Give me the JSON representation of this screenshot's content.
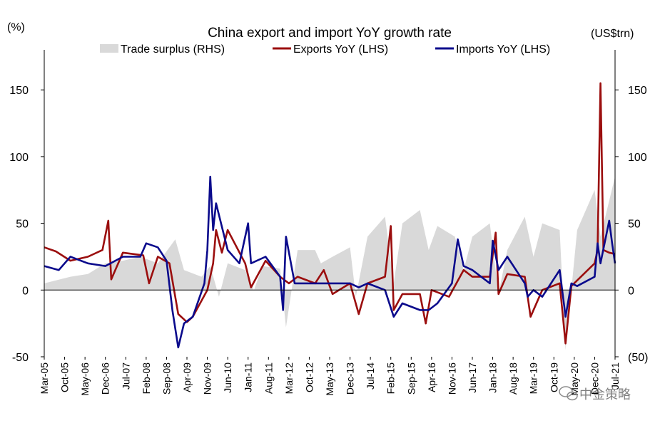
{
  "chart_data": {
    "type": "line",
    "title": "China export and import YoY growth rate",
    "left_axis_unit": "(%)",
    "right_axis_unit": "(US$trn)",
    "ylim_left": [
      -50,
      180
    ],
    "ylim_right": [
      -50,
      180
    ],
    "left_ticks": [
      "150",
      "100",
      "50",
      "0",
      "-50"
    ],
    "right_ticks": [
      "150",
      "100",
      "50",
      "0",
      "(50)"
    ],
    "right_negative_tick_color": "#c00000",
    "x_tick_labels": [
      "Mar-05",
      "Oct-05",
      "May-06",
      "Dec-06",
      "Jul-07",
      "Feb-08",
      "Sep-08",
      "Apr-09",
      "Nov-09",
      "Jun-10",
      "Jan-11",
      "Aug-11",
      "Mar-12",
      "Oct-12",
      "May-13",
      "Dec-13",
      "Jul-14",
      "Feb-15",
      "Sep-15",
      "Apr-16",
      "Nov-16",
      "Jun-17",
      "Jan-18",
      "Aug-18",
      "Mar-19",
      "Oct-19",
      "May-20",
      "Dec-20",
      "Jul-21"
    ],
    "grid": false,
    "legend_position": "top",
    "legend": [
      {
        "label": "Trade surplus (RHS)",
        "color": "#d9d9d9",
        "kind": "area"
      },
      {
        "label": "Exports YoY (LHS)",
        "color": "#9b0e0e",
        "kind": "line"
      },
      {
        "label": "Imports YoY (LHS)",
        "color": "#0a0a8c",
        "kind": "line"
      }
    ],
    "x": {
      "start": "Mar-05",
      "end": "Jul-21",
      "frequency": "monthly"
    },
    "series": [
      {
        "name": "Trade surplus (RHS)",
        "kind": "area",
        "color": "#d9d9d9",
        "knots": [
          [
            "Mar-05",
            5
          ],
          [
            "Dec-05",
            10
          ],
          [
            "Jun-06",
            12
          ],
          [
            "Dec-06",
            20
          ],
          [
            "Jun-07",
            22
          ],
          [
            "Dec-07",
            25
          ],
          [
            "Jun-08",
            20
          ],
          [
            "Dec-08",
            38
          ],
          [
            "Mar-09",
            15
          ],
          [
            "Sep-09",
            10
          ],
          [
            "Dec-09",
            18
          ],
          [
            "Mar-10",
            -5
          ],
          [
            "Jun-10",
            20
          ],
          [
            "Dec-10",
            15
          ],
          [
            "Mar-11",
            0
          ],
          [
            "Jun-11",
            18
          ],
          [
            "Dec-11",
            16
          ],
          [
            "Feb-12",
            -28
          ],
          [
            "Jun-12",
            30
          ],
          [
            "Dec-12",
            30
          ],
          [
            "Feb-13",
            20
          ],
          [
            "Jun-13",
            25
          ],
          [
            "Dec-13",
            32
          ],
          [
            "Feb-14",
            -5
          ],
          [
            "Jun-14",
            40
          ],
          [
            "Dec-14",
            55
          ],
          [
            "Mar-15",
            5
          ],
          [
            "Jun-15",
            50
          ],
          [
            "Dec-15",
            60
          ],
          [
            "Mar-16",
            30
          ],
          [
            "Jun-16",
            48
          ],
          [
            "Dec-16",
            40
          ],
          [
            "Mar-17",
            15
          ],
          [
            "Jun-17",
            40
          ],
          [
            "Dec-17",
            50
          ],
          [
            "Mar-18",
            -3
          ],
          [
            "Jun-18",
            30
          ],
          [
            "Dec-18",
            55
          ],
          [
            "Mar-19",
            25
          ],
          [
            "Jun-19",
            50
          ],
          [
            "Dec-19",
            45
          ],
          [
            "Feb-20",
            -45
          ],
          [
            "Jun-20",
            45
          ],
          [
            "Dec-20",
            75
          ],
          [
            "Feb-21",
            40
          ],
          [
            "Jul-21",
            85
          ]
        ]
      },
      {
        "name": "Exports YoY (LHS)",
        "kind": "line",
        "color": "#9b0e0e",
        "knots": [
          [
            "Mar-05",
            32
          ],
          [
            "Jul-05",
            29
          ],
          [
            "Dec-05",
            22
          ],
          [
            "Jun-06",
            25
          ],
          [
            "Nov-06",
            30
          ],
          [
            "Jan-07",
            52
          ],
          [
            "Feb-07",
            8
          ],
          [
            "Jun-07",
            28
          ],
          [
            "Jan-08",
            26
          ],
          [
            "Mar-08",
            5
          ],
          [
            "Jun-08",
            25
          ],
          [
            "Oct-08",
            20
          ],
          [
            "Jan-09",
            -18
          ],
          [
            "Apr-09",
            -24
          ],
          [
            "Jun-09",
            -20
          ],
          [
            "Nov-09",
            0
          ],
          [
            "Jan-10",
            20
          ],
          [
            "Feb-10",
            45
          ],
          [
            "Apr-10",
            28
          ],
          [
            "Jun-10",
            45
          ],
          [
            "Dec-10",
            20
          ],
          [
            "Feb-11",
            2
          ],
          [
            "Jul-11",
            22
          ],
          [
            "Dec-11",
            10
          ],
          [
            "Mar-12",
            5
          ],
          [
            "Jun-12",
            10
          ],
          [
            "Dec-12",
            5
          ],
          [
            "Mar-13",
            15
          ],
          [
            "Jun-13",
            -3
          ],
          [
            "Dec-13",
            5
          ],
          [
            "Mar-14",
            -18
          ],
          [
            "Jun-14",
            5
          ],
          [
            "Dec-14",
            10
          ],
          [
            "Feb-15",
            48
          ],
          [
            "Mar-15",
            -15
          ],
          [
            "Jun-15",
            -3
          ],
          [
            "Dec-15",
            -3
          ],
          [
            "Feb-16",
            -25
          ],
          [
            "Apr-16",
            0
          ],
          [
            "Oct-16",
            -5
          ],
          [
            "Mar-17",
            15
          ],
          [
            "Jun-17",
            10
          ],
          [
            "Dec-17",
            10
          ],
          [
            "Feb-18",
            43
          ],
          [
            "Mar-18",
            -3
          ],
          [
            "Jun-18",
            12
          ],
          [
            "Dec-18",
            10
          ],
          [
            "Feb-19",
            -20
          ],
          [
            "Jun-19",
            0
          ],
          [
            "Dec-19",
            5
          ],
          [
            "Feb-20",
            -40
          ],
          [
            "Apr-20",
            3
          ],
          [
            "Dec-20",
            20
          ],
          [
            "Jan-21",
            30
          ],
          [
            "Feb-21",
            155
          ],
          [
            "Mar-21",
            30
          ],
          [
            "May-21",
            28
          ],
          [
            "Jul-21",
            27
          ]
        ]
      },
      {
        "name": "Imports YoY (LHS)",
        "kind": "line",
        "color": "#0a0a8c",
        "knots": [
          [
            "Mar-05",
            18
          ],
          [
            "Aug-05",
            15
          ],
          [
            "Dec-05",
            25
          ],
          [
            "Jun-06",
            20
          ],
          [
            "Dec-06",
            18
          ],
          [
            "Jun-07",
            25
          ],
          [
            "Dec-07",
            25
          ],
          [
            "Feb-08",
            35
          ],
          [
            "Jun-08",
            32
          ],
          [
            "Sep-08",
            22
          ],
          [
            "Nov-08",
            -15
          ],
          [
            "Jan-09",
            -43
          ],
          [
            "Mar-09",
            -25
          ],
          [
            "Jun-09",
            -20
          ],
          [
            "Oct-09",
            5
          ],
          [
            "Nov-09",
            30
          ],
          [
            "Dec-09",
            85
          ],
          [
            "Jan-10",
            45
          ],
          [
            "Feb-10",
            65
          ],
          [
            "Jun-10",
            30
          ],
          [
            "Oct-10",
            20
          ],
          [
            "Jan-11",
            50
          ],
          [
            "Feb-11",
            20
          ],
          [
            "Jul-11",
            25
          ],
          [
            "Dec-11",
            10
          ],
          [
            "Jan-12",
            -15
          ],
          [
            "Feb-12",
            40
          ],
          [
            "May-12",
            5
          ],
          [
            "Dec-12",
            5
          ],
          [
            "Jun-13",
            5
          ],
          [
            "Dec-13",
            5
          ],
          [
            "Mar-14",
            2
          ],
          [
            "Jun-14",
            5
          ],
          [
            "Dec-14",
            0
          ],
          [
            "Mar-15",
            -20
          ],
          [
            "Jun-15",
            -10
          ],
          [
            "Dec-15",
            -15
          ],
          [
            "Mar-16",
            -15
          ],
          [
            "Jun-16",
            -10
          ],
          [
            "Nov-16",
            5
          ],
          [
            "Jan-17",
            38
          ],
          [
            "Mar-17",
            18
          ],
          [
            "Jun-17",
            15
          ],
          [
            "Dec-17",
            5
          ],
          [
            "Jan-18",
            37
          ],
          [
            "Mar-18",
            15
          ],
          [
            "Jun-18",
            25
          ],
          [
            "Dec-18",
            5
          ],
          [
            "Jan-19",
            -5
          ],
          [
            "Mar-19",
            0
          ],
          [
            "Jun-19",
            -5
          ],
          [
            "Dec-19",
            15
          ],
          [
            "Feb-20",
            -20
          ],
          [
            "Apr-20",
            5
          ],
          [
            "Jun-20",
            3
          ],
          [
            "Dec-20",
            10
          ],
          [
            "Jan-21",
            35
          ],
          [
            "Feb-21",
            20
          ],
          [
            "May-21",
            52
          ],
          [
            "Jun-21",
            35
          ],
          [
            "Jul-21",
            20
          ]
        ]
      }
    ]
  },
  "watermark": {
    "text": "中金策略",
    "icon": "wechat-icon"
  }
}
